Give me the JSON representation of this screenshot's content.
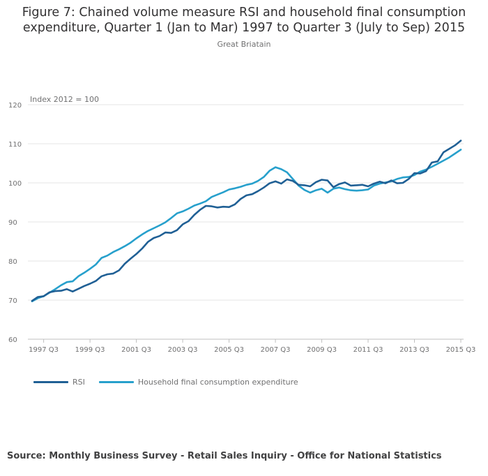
{
  "chart_data": {
    "type": "line",
    "title": "Figure 7: Chained volume measure RSI and household final consumption expenditure, Quarter 1 (Jan to Mar) 1997 to Quarter 3 (July to Sep) 2015",
    "subtitle": "Great Briatain",
    "ylabel": "Index 2012 = 100",
    "xlabel": "",
    "ylim": [
      60,
      120
    ],
    "yticks": [
      "60",
      "70",
      "80",
      "90",
      "100",
      "110",
      "120"
    ],
    "xtick_labels": [
      "1997 Q3",
      "1999 Q3",
      "2001 Q3",
      "2003 Q3",
      "2005 Q3",
      "2007 Q3",
      "2009 Q3",
      "2011 Q3",
      "2013 Q3",
      "2015 Q3"
    ],
    "x_start": "1997 Q1",
    "x_end": "2015 Q3",
    "grid": "horizontal",
    "legend": "bottom",
    "series": [
      {
        "name": "RSI",
        "color": "#206095",
        "values": [
          69.8,
          70.8,
          71.0,
          72.0,
          72.3,
          72.4,
          72.8,
          72.2,
          72.9,
          73.6,
          74.2,
          74.9,
          76.1,
          76.6,
          76.8,
          77.6,
          79.3,
          80.6,
          81.8,
          83.2,
          84.9,
          85.9,
          86.4,
          87.3,
          87.2,
          87.9,
          89.4,
          90.2,
          91.8,
          93.1,
          94.1,
          94.0,
          93.7,
          93.9,
          93.8,
          94.5,
          95.9,
          96.8,
          97.1,
          97.9,
          98.8,
          99.9,
          100.4,
          99.8,
          100.9,
          100.5,
          99.5,
          99.4,
          99.1,
          100.2,
          100.8,
          100.6,
          98.9,
          99.7,
          100.1,
          99.3,
          99.4,
          99.5,
          99.1,
          99.8,
          100.3,
          99.9,
          100.6,
          99.9,
          100.0,
          101.0,
          102.5,
          102.4,
          103.0,
          105.2,
          105.5,
          107.8,
          108.7,
          109.6,
          110.8
        ]
      },
      {
        "name": "Household final consumption expenditure",
        "color": "#27a0cc",
        "values": [
          69.7,
          70.5,
          71.0,
          71.9,
          72.8,
          73.8,
          74.6,
          74.8,
          76.1,
          77.0,
          78.0,
          79.1,
          80.8,
          81.4,
          82.3,
          83.0,
          83.8,
          84.7,
          85.8,
          86.8,
          87.7,
          88.4,
          89.1,
          89.9,
          91.0,
          92.2,
          92.7,
          93.4,
          94.2,
          94.7,
          95.3,
          96.4,
          97.0,
          97.6,
          98.3,
          98.6,
          99.0,
          99.5,
          99.8,
          100.5,
          101.5,
          103.1,
          104.0,
          103.5,
          102.7,
          101.0,
          99.3,
          98.2,
          97.5,
          98.1,
          98.5,
          97.5,
          98.5,
          98.8,
          98.4,
          98.1,
          98.0,
          98.1,
          98.3,
          99.3,
          99.8,
          100.1,
          100.4,
          101.0,
          101.4,
          101.5,
          102.0,
          102.9,
          103.4,
          104.1,
          104.9,
          105.7,
          106.5,
          107.5,
          108.5
        ]
      }
    ]
  },
  "source": "Source: Monthly Business Survey - Retail Sales Inquiry - Office for National Statistics"
}
